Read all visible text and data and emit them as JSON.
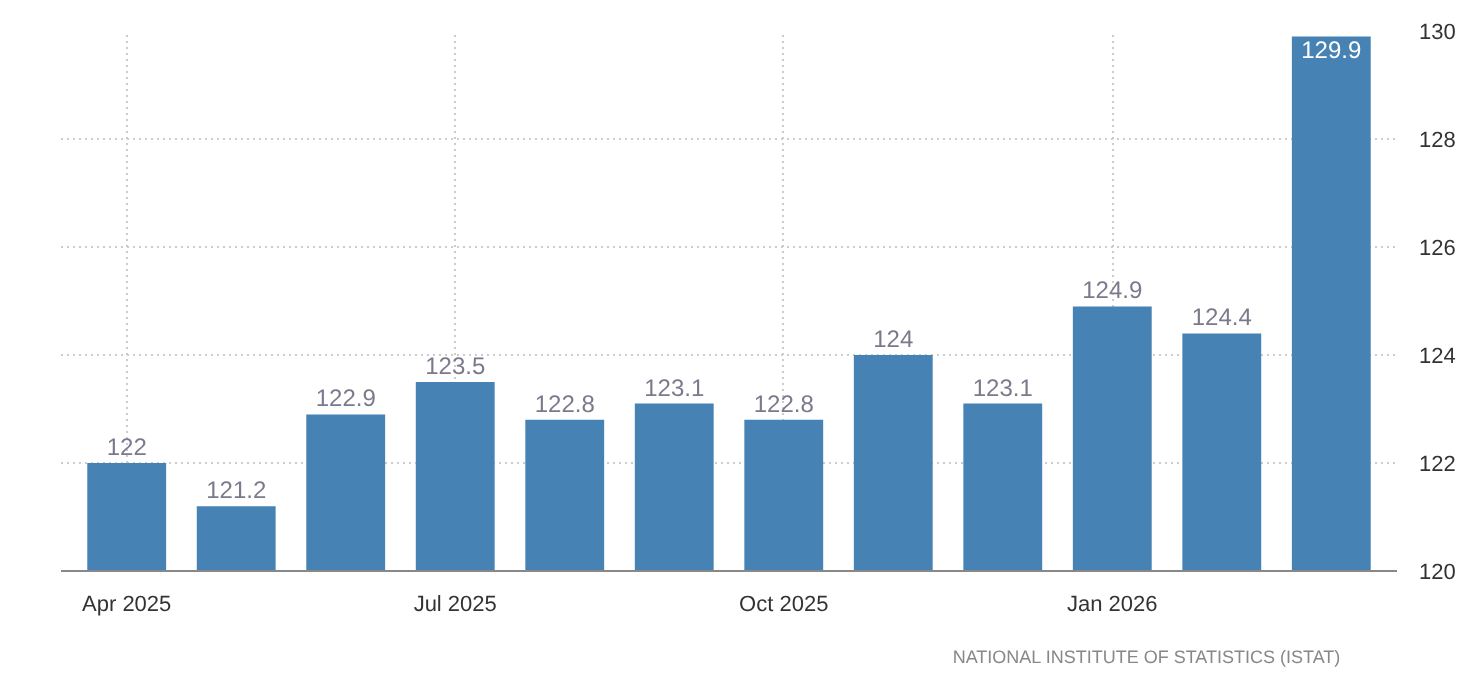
{
  "chart_data": {
    "type": "bar",
    "categories": [
      "Apr 2025",
      null,
      null,
      "Jul 2025",
      null,
      null,
      "Oct 2025",
      null,
      null,
      "Jan 2026",
      null,
      null
    ],
    "values": [
      122,
      121.2,
      122.9,
      123.5,
      122.8,
      123.1,
      122.8,
      124,
      123.1,
      124.9,
      124.4,
      129.9
    ],
    "color": "#4682b4",
    "ylim": [
      120,
      130
    ],
    "yticks": [
      120,
      122,
      124,
      126,
      128,
      130
    ],
    "grid": true,
    "data_labels": true,
    "annotations": [
      "NATIONAL INSTITUTE OF STATISTICS (ISTAT)"
    ]
  }
}
